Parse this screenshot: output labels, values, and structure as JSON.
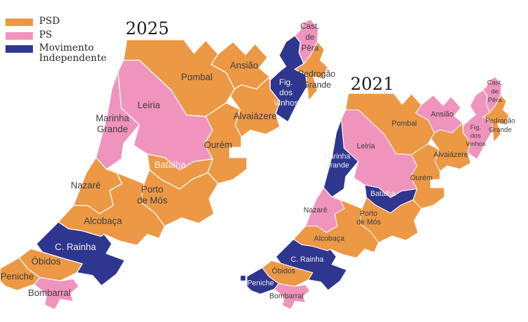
{
  "parties": {
    "PSD": "#EC9845",
    "PS": "#F093BD",
    "MI": "#2F3690"
  },
  "legend": {
    "items": [
      {
        "party": "PSD",
        "label": "PSD"
      },
      {
        "party": "PS",
        "label": "PS"
      },
      {
        "party": "MI",
        "label": "Movimento Independente"
      }
    ]
  },
  "maps": [
    {
      "year": "2025",
      "title": "2025"
    },
    {
      "year": "2021",
      "title": "2021"
    }
  ],
  "municipalities": [
    {
      "id": "pombal",
      "name": "Pombal",
      "lines": [
        "Pombal"
      ],
      "party_2025": "PSD",
      "party_2021": "PSD"
    },
    {
      "id": "ansiao",
      "name": "Ansião",
      "lines": [
        "Ansião"
      ],
      "party_2025": "PSD",
      "party_2021": "PS"
    },
    {
      "id": "castanheira_de_pera",
      "name": "Cast. de Pêra",
      "lines": [
        "Cast.",
        "de",
        "Pêra"
      ],
      "party_2025": "PS",
      "party_2021": "PS"
    },
    {
      "id": "figueiro_dos_vinhos",
      "name": "Fig. dos Vinhos",
      "lines": [
        "Fig.",
        "dos",
        "Vinhos"
      ],
      "party_2025": "MI",
      "party_2021": "PS",
      "white_2025": true
    },
    {
      "id": "pedrogao_grande",
      "name": "Pedrogão Grande",
      "lines": [
        "Pedrogão",
        "Grande"
      ],
      "party_2025": "PSD",
      "party_2021": "PSD"
    },
    {
      "id": "alvaiazere",
      "name": "Alvaiázere",
      "lines": [
        "Alvaiázere"
      ],
      "party_2025": "PSD",
      "party_2021": "PSD"
    },
    {
      "id": "ourem",
      "name": "Ourém",
      "lines": [
        "Ourém"
      ],
      "party_2025": "PSD",
      "party_2021": "PSD"
    },
    {
      "id": "leiria",
      "name": "Leiria",
      "lines": [
        "Leiria"
      ],
      "party_2025": "PS",
      "party_2021": "PS"
    },
    {
      "id": "marinha_grande",
      "name": "Marinha Grande",
      "lines": [
        "Marinha",
        "Grande"
      ],
      "party_2025": "PS",
      "party_2021": "MI",
      "white_2021": true
    },
    {
      "id": "batalha",
      "name": "Batalha",
      "lines": [
        "Batalha"
      ],
      "party_2025": "PSD",
      "party_2021": "MI",
      "white_2025": true,
      "white_2021": true
    },
    {
      "id": "porto_de_mos",
      "name": "Porto de Mós",
      "lines": [
        "Porto",
        "de Mós"
      ],
      "party_2025": "PSD",
      "party_2021": "PSD"
    },
    {
      "id": "nazare",
      "name": "Nazaré",
      "lines": [
        "Nazaré"
      ],
      "party_2025": "PSD",
      "party_2021": "PS"
    },
    {
      "id": "alcobaca",
      "name": "Alcobaça",
      "lines": [
        "Alcobaça"
      ],
      "party_2025": "PSD",
      "party_2021": "PSD"
    },
    {
      "id": "caldas_da_rainha",
      "name": "C. Rainha",
      "lines": [
        "C. Rainha"
      ],
      "party_2025": "MI",
      "party_2021": "MI",
      "white_2025": true,
      "white_2021": true
    },
    {
      "id": "obidos",
      "name": "Óbidos",
      "lines": [
        "Óbidos"
      ],
      "party_2025": "PSD",
      "party_2021": "PSD"
    },
    {
      "id": "peniche",
      "name": "Peniche",
      "lines": [
        "Peniche"
      ],
      "party_2025": "PSD",
      "party_2021": "MI",
      "white_2021": true
    },
    {
      "id": "bombarral",
      "name": "Bombarral",
      "lines": [
        "Bombarral"
      ],
      "party_2025": "PS",
      "party_2021": "PS"
    }
  ]
}
